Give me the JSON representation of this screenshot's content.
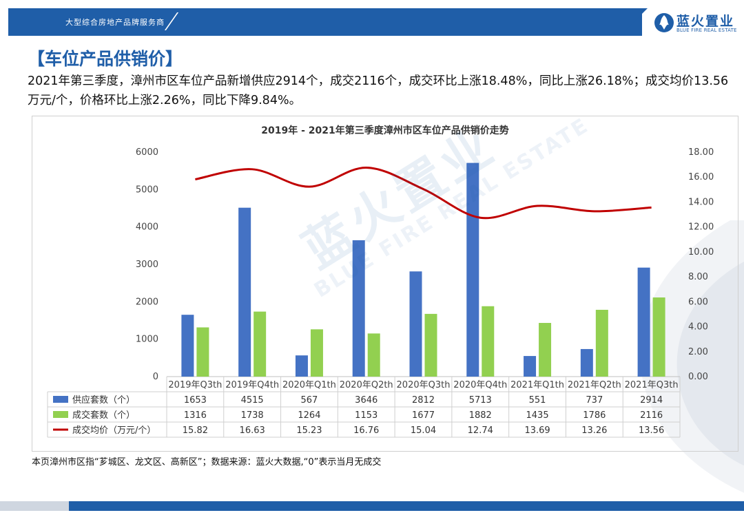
{
  "header": {
    "tagline": "大型综合房地产品牌服务商",
    "logo_cn": "蓝火置业",
    "logo_en": "BLUE FIRE REAL ESTATE"
  },
  "page": {
    "title": "【车位产品供销价】",
    "summary": "2021年第三季度，漳州市区车位产品新增供应2914个，成交2116个，成交环比上涨18.48%，同比上涨26.18%；成交均价13.56万元/个，价格环比上涨2.26%，同比下降9.84%。",
    "footnote": "本页漳州市区指“芗城区、龙文区、高新区”；数据来源：蓝火大数据,“0”表示当月无成交"
  },
  "watermark": {
    "cn": "蓝火置业",
    "en": "BLUE FIRE REAL ESTATE"
  },
  "colors": {
    "brand": "#1f5ea8",
    "supply": "#4472c4",
    "deal": "#92d050",
    "price": "#c00000"
  },
  "chart_data": {
    "type": "bar",
    "title": "2019年 - 2021年第三季度漳州市区车位产品供销价走势",
    "categories": [
      "2019年Q3th",
      "2019年Q4th",
      "2020年Q1th",
      "2020年Q2th",
      "2020年Q3th",
      "2020年Q4th",
      "2021年Q1th",
      "2021年Q2th",
      "2021年Q3th"
    ],
    "series": [
      {
        "name": "供应套数（个）",
        "kind": "bar",
        "axis": "left",
        "values": [
          1653,
          4515,
          567,
          3646,
          2812,
          5713,
          551,
          737,
          2914
        ],
        "labels": [
          "1653",
          "4515",
          "567",
          "3646",
          "2812",
          "5713",
          "551",
          "737",
          "2914"
        ]
      },
      {
        "name": "成交套数（个）",
        "kind": "bar",
        "axis": "left",
        "values": [
          1316,
          1738,
          1264,
          1153,
          1677,
          1882,
          1435,
          1786,
          2116
        ],
        "labels": [
          "1316",
          "1738",
          "1264",
          "1153",
          "1677",
          "1882",
          "1435",
          "1786",
          "2116"
        ]
      },
      {
        "name": "成交均价（万元/个）",
        "kind": "line",
        "axis": "right",
        "values": [
          15.82,
          16.63,
          15.23,
          16.76,
          15.04,
          12.74,
          13.69,
          13.26,
          13.56
        ],
        "labels": [
          "15.82",
          "16.63",
          "15.23",
          "16.76",
          "15.04",
          "12.74",
          "13.69",
          "13.26",
          "13.56"
        ]
      }
    ],
    "ylim": [
      0,
      6000
    ],
    "yticks": [
      "0",
      "1000",
      "2000",
      "3000",
      "4000",
      "5000",
      "6000"
    ],
    "y2lim": [
      0,
      18
    ],
    "y2ticks": [
      "0.00",
      "2.00",
      "4.00",
      "6.00",
      "8.00",
      "10.00",
      "12.00",
      "14.00",
      "16.00",
      "18.00"
    ],
    "legend": "data-table"
  }
}
